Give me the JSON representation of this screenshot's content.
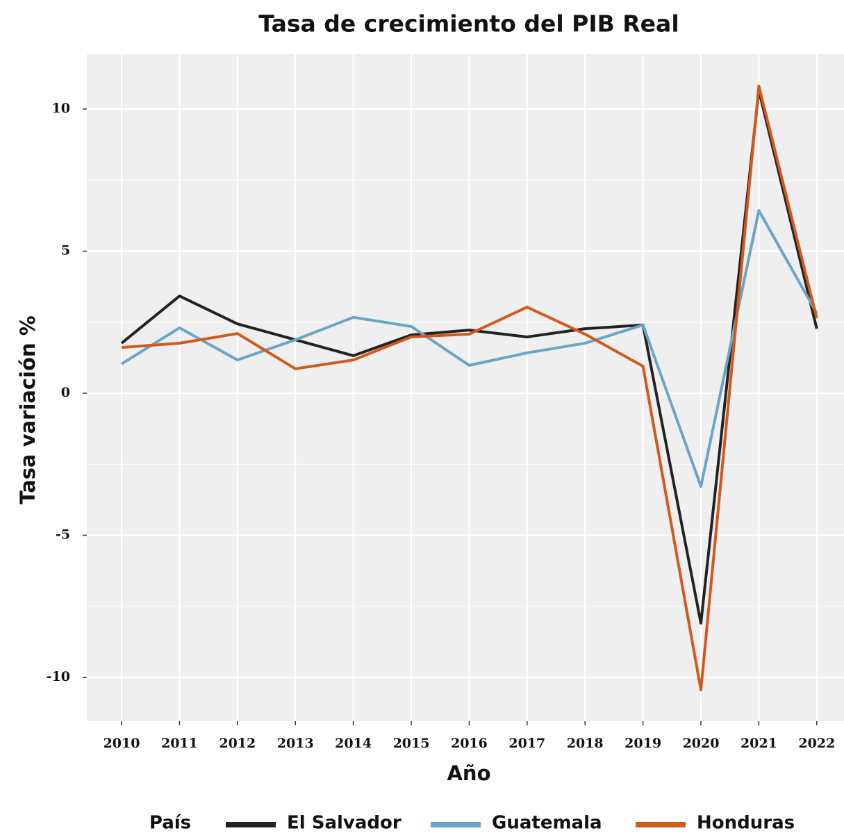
{
  "chart_data": {
    "type": "line",
    "title": "Tasa de crecimiento del PIB Real",
    "x_label": "Año",
    "y_label": "Tasa variación %",
    "legend_title": "País",
    "x": [
      2010,
      2011,
      2012,
      2013,
      2014,
      2015,
      2016,
      2017,
      2018,
      2019,
      2020,
      2021,
      2022
    ],
    "series": [
      {
        "name": "El Salvador",
        "color": "#222222",
        "values": [
          1.76,
          3.42,
          2.44,
          1.88,
          1.32,
          2.05,
          2.22,
          1.98,
          2.27,
          2.4,
          -8.09,
          10.66,
          2.27
        ]
      },
      {
        "name": "Guatemala",
        "color": "#6aa5c8",
        "values": [
          1.03,
          2.3,
          1.17,
          1.88,
          2.67,
          2.35,
          0.98,
          1.42,
          1.76,
          2.4,
          -3.28,
          6.43,
          2.81
        ]
      },
      {
        "name": "Honduras",
        "color": "#d05a1e",
        "values": [
          1.61,
          1.76,
          2.1,
          0.86,
          1.17,
          1.98,
          2.08,
          3.03,
          2.08,
          0.95,
          -10.44,
          10.81,
          2.64
        ]
      }
    ],
    "xlim": [
      2009.4,
      2022.47
    ],
    "xticks": [
      2010,
      2011,
      2012,
      2013,
      2014,
      2015,
      2016,
      2017,
      2018,
      2019,
      2020,
      2021,
      2022
    ],
    "ylim": [
      -11.54,
      11.93
    ],
    "yticks": [
      -10,
      -5,
      0,
      5,
      10
    ],
    "grid": true,
    "legend": "bottom"
  }
}
